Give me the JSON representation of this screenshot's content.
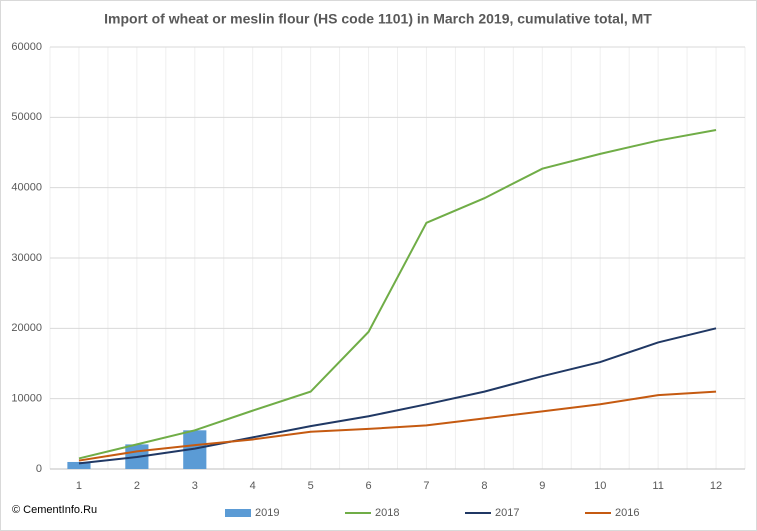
{
  "chart_data": {
    "type": "combo",
    "title": "Import of wheat or meslin flour (HS code 1101) in March 2019, cumulative total, MT",
    "source": "© CementInfo.Ru",
    "categories": [
      "1",
      "2",
      "3",
      "4",
      "5",
      "6",
      "7",
      "8",
      "9",
      "10",
      "11",
      "12"
    ],
    "series": [
      {
        "name": "2019",
        "type": "bar",
        "color": "#5b9bd5",
        "values": [
          1000,
          3500,
          5500,
          null,
          null,
          null,
          null,
          null,
          null,
          null,
          null,
          null
        ]
      },
      {
        "name": "2018",
        "type": "line",
        "color": "#70ad47",
        "values": [
          1500,
          3500,
          5500,
          8300,
          11000,
          19500,
          35000,
          38500,
          42700,
          44800,
          46700,
          48200
        ]
      },
      {
        "name": "2017",
        "type": "line",
        "color": "#203864",
        "values": [
          800,
          1700,
          2900,
          4500,
          6100,
          7500,
          9200,
          11000,
          13200,
          15200,
          18000,
          20000
        ]
      },
      {
        "name": "2016",
        "type": "line",
        "color": "#c55a11",
        "values": [
          1200,
          2500,
          3400,
          4200,
          5300,
          5700,
          6200,
          7200,
          8200,
          9200,
          10500,
          11000
        ]
      }
    ],
    "ylim": [
      0,
      60000
    ],
    "yticks": [
      0,
      10000,
      20000,
      30000,
      40000,
      50000,
      60000
    ],
    "grid": true,
    "legend": "bottom"
  }
}
